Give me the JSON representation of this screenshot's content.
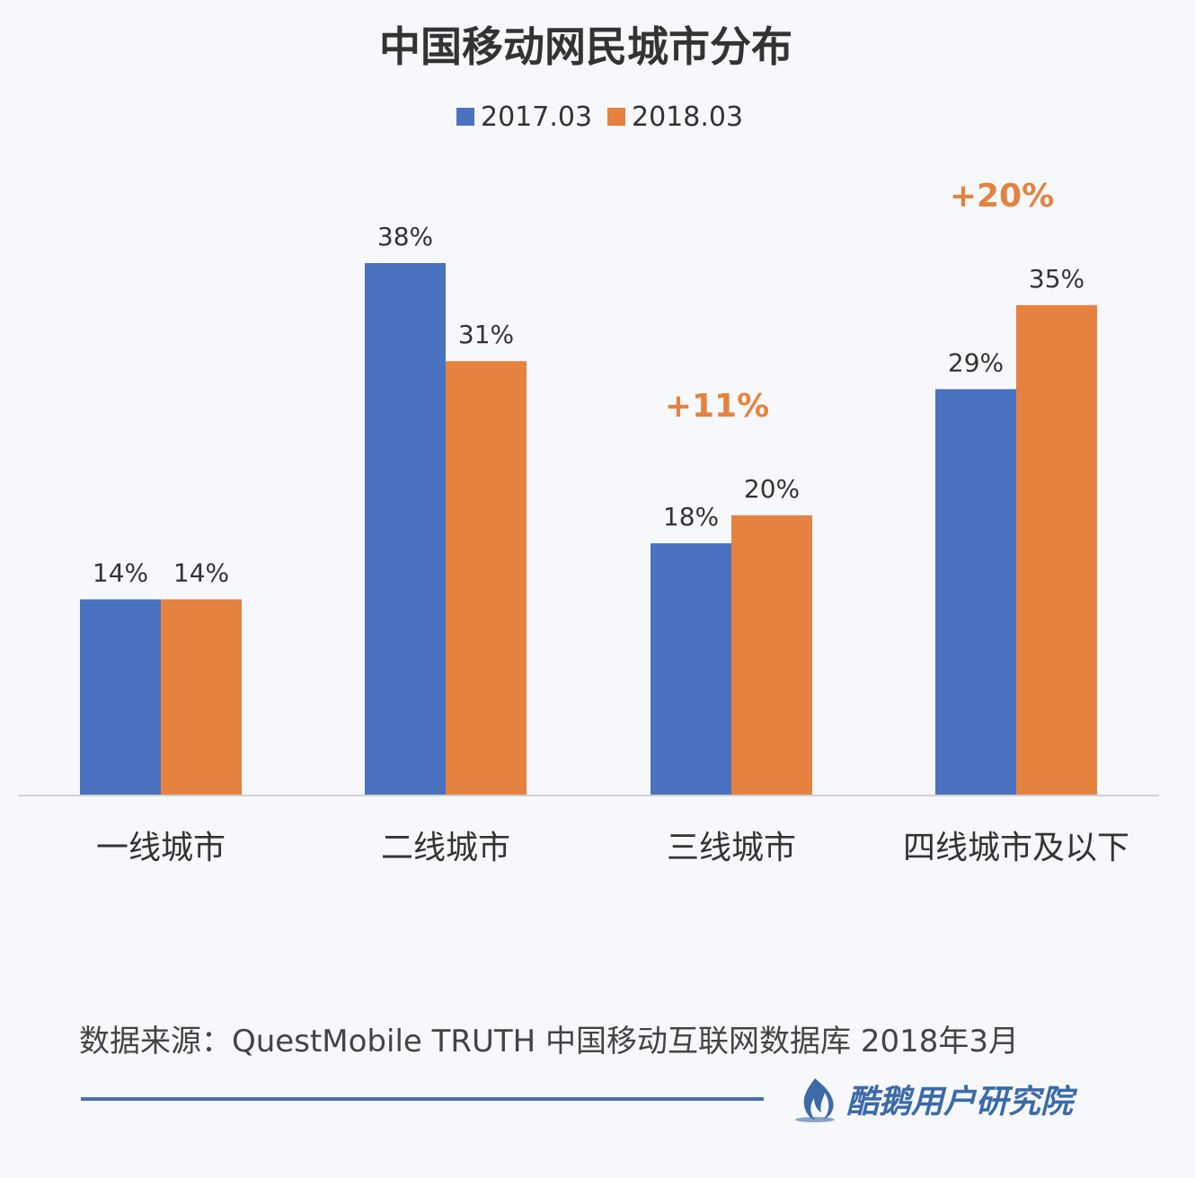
{
  "chart_data": {
    "type": "bar",
    "title": "中国移动网民城市分布",
    "categories": [
      "一线城市",
      "二线城市",
      "三线城市",
      "四线城市及以下"
    ],
    "series": [
      {
        "name": "2017.03",
        "values": [
          14,
          38,
          18,
          29
        ],
        "labels": [
          "14%",
          "38%",
          "18%",
          "29%"
        ]
      },
      {
        "name": "2018.03",
        "values": [
          14,
          31,
          20,
          35
        ],
        "labels": [
          "14%",
          "31%",
          "20%",
          "35%"
        ]
      }
    ],
    "annotations": [
      {
        "category": "三线城市",
        "text": "+11%"
      },
      {
        "category": "四线城市及以下",
        "text": "+20%"
      }
    ],
    "ylim": [
      0,
      38
    ],
    "grid": false,
    "legend_position": "top-center",
    "xlabel": "",
    "ylabel": ""
  },
  "colors": {
    "series_1": "#4a72c0",
    "series_2": "#e6823f",
    "growth": "#e6823f",
    "brand": "#3a6aa8"
  },
  "source_text": "数据来源：QuestMobile TRUTH 中国移动互联网数据库 2018年3月",
  "brand": {
    "name": "酷鹅用户研究院",
    "icon": "flame-logo-icon"
  }
}
